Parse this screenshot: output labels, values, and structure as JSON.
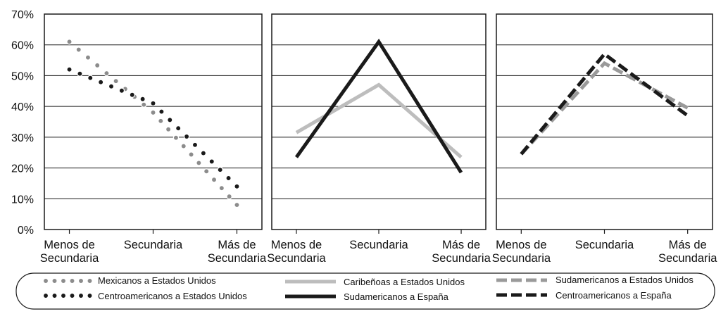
{
  "chart_data": {
    "type": "line",
    "ylim": [
      0,
      0.7
    ],
    "yticks": [
      "0%",
      "10%",
      "20%",
      "30%",
      "40%",
      "50%",
      "60%",
      "70%"
    ],
    "categories": [
      [
        "Menos de",
        "Secundaria"
      ],
      [
        "Secundaria"
      ],
      [
        "Más de",
        "Secundaria"
      ]
    ],
    "panels": [
      {
        "series": [
          {
            "name": "Mexicanos a Estados Unidos",
            "values": [
              0.61,
              0.38,
              0.08
            ],
            "color": "#8c8c8c",
            "style": "dotted"
          },
          {
            "name": "Centroamericanos a Estados Unidos",
            "values": [
              0.52,
              0.41,
              0.14
            ],
            "color": "#1a1a1a",
            "style": "dotted"
          }
        ]
      },
      {
        "series": [
          {
            "name": "Caribeñoas a Estados Unidos",
            "values": [
              0.315,
              0.47,
              0.235
            ],
            "color": "#bdbdbd",
            "style": "solid"
          },
          {
            "name": "Sudamericanos a España",
            "values": [
              0.235,
              0.61,
              0.185
            ],
            "color": "#1a1a1a",
            "style": "solid"
          }
        ]
      },
      {
        "series": [
          {
            "name": "Sudamericanos a Estados  Unidos",
            "values": [
              0.245,
              0.54,
              0.395
            ],
            "color": "#9a9a9a",
            "style": "dashed"
          },
          {
            "name": "Centroamericanos a España",
            "values": [
              0.245,
              0.57,
              0.37
            ],
            "color": "#1a1a1a",
            "style": "dashed"
          }
        ]
      }
    ],
    "legend": {
      "placement": "bottom",
      "entries": [
        "Mexicanos a Estados Unidos",
        "Centroamericanos a Estados Unidos",
        "Caribeñoas a Estados Unidos",
        "Sudamericanos a España",
        "Sudamericanos a Estados  Unidos",
        "Centroamericanos a España"
      ]
    },
    "grid": true
  }
}
